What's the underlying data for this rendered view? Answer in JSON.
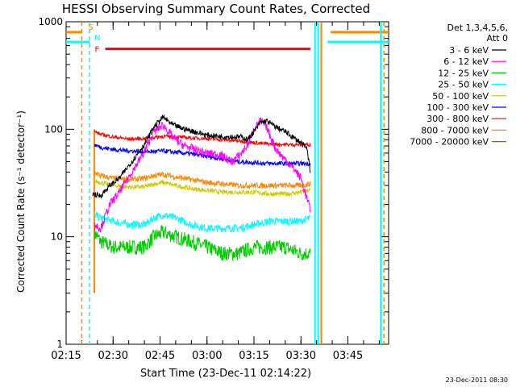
{
  "chart_data": {
    "type": "line",
    "title": "HESSI Observing Summary Count Rates, Corrected",
    "xlabel": "Start Time (23-Dec-11 02:14:22)",
    "ylabel": "Corrected Count Rate (s⁻¹ detector⁻¹)",
    "y_scale": "log",
    "ylim": [
      1,
      1000
    ],
    "xlim_minutes": [
      135,
      238
    ],
    "x_ticks": [
      {
        "t": 135,
        "label": "02:15"
      },
      {
        "t": 150,
        "label": "02:30"
      },
      {
        "t": 165,
        "label": "02:45"
      },
      {
        "t": 180,
        "label": "03:00"
      },
      {
        "t": 195,
        "label": "03:15"
      },
      {
        "t": 210,
        "label": "03:30"
      },
      {
        "t": 225,
        "label": "03:45"
      }
    ],
    "y_ticks": [
      {
        "v": 1,
        "label": "1"
      },
      {
        "v": 10,
        "label": "10"
      },
      {
        "v": 100,
        "label": "100"
      },
      {
        "v": 1000,
        "label": "1000"
      }
    ],
    "legend_header": [
      "Det 1,3,4,5,6,",
      "Att 0"
    ],
    "legend_position": "right",
    "series": [
      {
        "name": "3 - 6 keV",
        "color": "#000000",
        "x": [
          143.5,
          146,
          149,
          152,
          156,
          160,
          163,
          166,
          169,
          172,
          176,
          180,
          184,
          188,
          191,
          193,
          195,
          197,
          199,
          202,
          205,
          208,
          210,
          212,
          213
        ],
        "values": [
          25,
          24,
          30,
          35,
          50,
          72,
          105,
          130,
          110,
          102,
          95,
          88,
          86,
          85,
          85,
          80,
          95,
          115,
          120,
          105,
          95,
          82,
          75,
          65,
          40
        ]
      },
      {
        "name": "6 - 12 keV",
        "color": "#ff00ff",
        "x": [
          144,
          146,
          149,
          152,
          156,
          160,
          163,
          166,
          169,
          172,
          176,
          180,
          184,
          188,
          191,
          193,
          195,
          197,
          199,
          202,
          205,
          208,
          210,
          212,
          213
        ],
        "values": [
          13,
          12,
          20,
          26,
          40,
          62,
          95,
          110,
          85,
          72,
          65,
          60,
          58,
          50,
          60,
          72,
          100,
          120,
          105,
          65,
          52,
          42,
          35,
          22,
          18
        ]
      },
      {
        "name": "12 - 25 keV",
        "color": "#00cc00",
        "x": [
          144,
          146,
          150,
          155,
          160,
          163,
          166,
          170,
          175,
          180,
          185,
          190,
          195,
          200,
          205,
          210,
          213
        ],
        "values": [
          11,
          9,
          8,
          8,
          8,
          10,
          11,
          10,
          9,
          8,
          7,
          7,
          8,
          8,
          8,
          7,
          7
        ]
      },
      {
        "name": "25 - 50 keV",
        "color": "#00ffff",
        "x": [
          144,
          146,
          150,
          155,
          160,
          163,
          166,
          170,
          175,
          180,
          185,
          190,
          195,
          200,
          205,
          210,
          213
        ],
        "values": [
          16,
          15,
          14,
          13,
          13,
          15,
          16,
          15,
          13,
          12,
          12,
          12,
          13,
          14,
          14,
          14,
          15
        ]
      },
      {
        "name": "50 - 100 keV",
        "color": "#cccc00",
        "x": [
          144,
          146,
          150,
          155,
          160,
          163,
          166,
          170,
          175,
          180,
          185,
          190,
          195,
          200,
          205,
          210,
          213
        ],
        "values": [
          33,
          32,
          30,
          29,
          29,
          31,
          32,
          30,
          28,
          27,
          26,
          26,
          26,
          25,
          25,
          26,
          27
        ]
      },
      {
        "name": "100 - 300 keV",
        "color": "#0000ff",
        "x": [
          144,
          146,
          150,
          155,
          160,
          163,
          166,
          170,
          175,
          180,
          185,
          190,
          195,
          200,
          205,
          210,
          213
        ],
        "values": [
          72,
          68,
          65,
          63,
          62,
          62,
          63,
          61,
          59,
          56,
          53,
          50,
          49,
          48,
          48,
          48,
          48
        ]
      },
      {
        "name": "300 - 800 keV",
        "color": "#ff0000",
        "x": [
          144,
          146,
          150,
          155,
          160,
          163,
          166,
          170,
          175,
          180,
          185,
          190,
          195,
          200,
          205,
          210,
          213
        ],
        "values": [
          95,
          90,
          85,
          81,
          82,
          84,
          86,
          85,
          83,
          82,
          80,
          78,
          75,
          73,
          72,
          72,
          72
        ]
      },
      {
        "name": "800 - 7000 keV",
        "color": "#ff8800",
        "x": [
          144,
          146,
          150,
          155,
          160,
          163,
          166,
          170,
          175,
          180,
          185,
          190,
          195,
          200,
          205,
          210,
          213
        ],
        "values": [
          40,
          37,
          35,
          34,
          35,
          37,
          38,
          36,
          34,
          32,
          31,
          30,
          30,
          30,
          30,
          30,
          31
        ]
      },
      {
        "name": "7000 - 20000 keV",
        "color": "#996600",
        "x": [],
        "values": []
      }
    ],
    "annotations": [
      {
        "text": "S",
        "color": "#ff8800"
      },
      {
        "text": "N",
        "color": "#00ffff"
      },
      {
        "text": "F",
        "color": "#ff0000"
      }
    ],
    "intervals": [
      {
        "label": "S",
        "color": "#ff8800",
        "x": [
          135,
          140
        ],
        "level": 800
      },
      {
        "label": "S",
        "color": "#ff8800",
        "x": [
          219.5,
          238
        ],
        "level": 800
      },
      {
        "label": "N",
        "color": "#00ffff",
        "x": [
          135,
          142.5
        ],
        "level": 650
      },
      {
        "label": "N",
        "color": "#00ffff",
        "x": [
          218.5,
          238
        ],
        "level": 650
      },
      {
        "label": "F",
        "color": "#ff0000",
        "x": [
          147.5,
          213
        ],
        "level": 560
      }
    ],
    "vertical_markers": [
      {
        "t": 140,
        "color": "#ff8800",
        "style": "dashed"
      },
      {
        "t": 142.5,
        "color": "#00ffff",
        "style": "dashed"
      },
      {
        "t": 144,
        "color": "#ff8800",
        "style": "solid"
      },
      {
        "t": 214.5,
        "color": "#00ffff",
        "style": "solid"
      },
      {
        "t": 215.5,
        "color": "#00ffff",
        "style": "solid"
      },
      {
        "t": 216.5,
        "color": "#ff8800",
        "style": "solid"
      },
      {
        "t": 235.5,
        "color": "#00ffff",
        "style": "solid"
      },
      {
        "t": 236.5,
        "color": "#ff8800",
        "style": "dashed"
      }
    ]
  },
  "footer_timestamp": "23-Dec-2011 08:30"
}
